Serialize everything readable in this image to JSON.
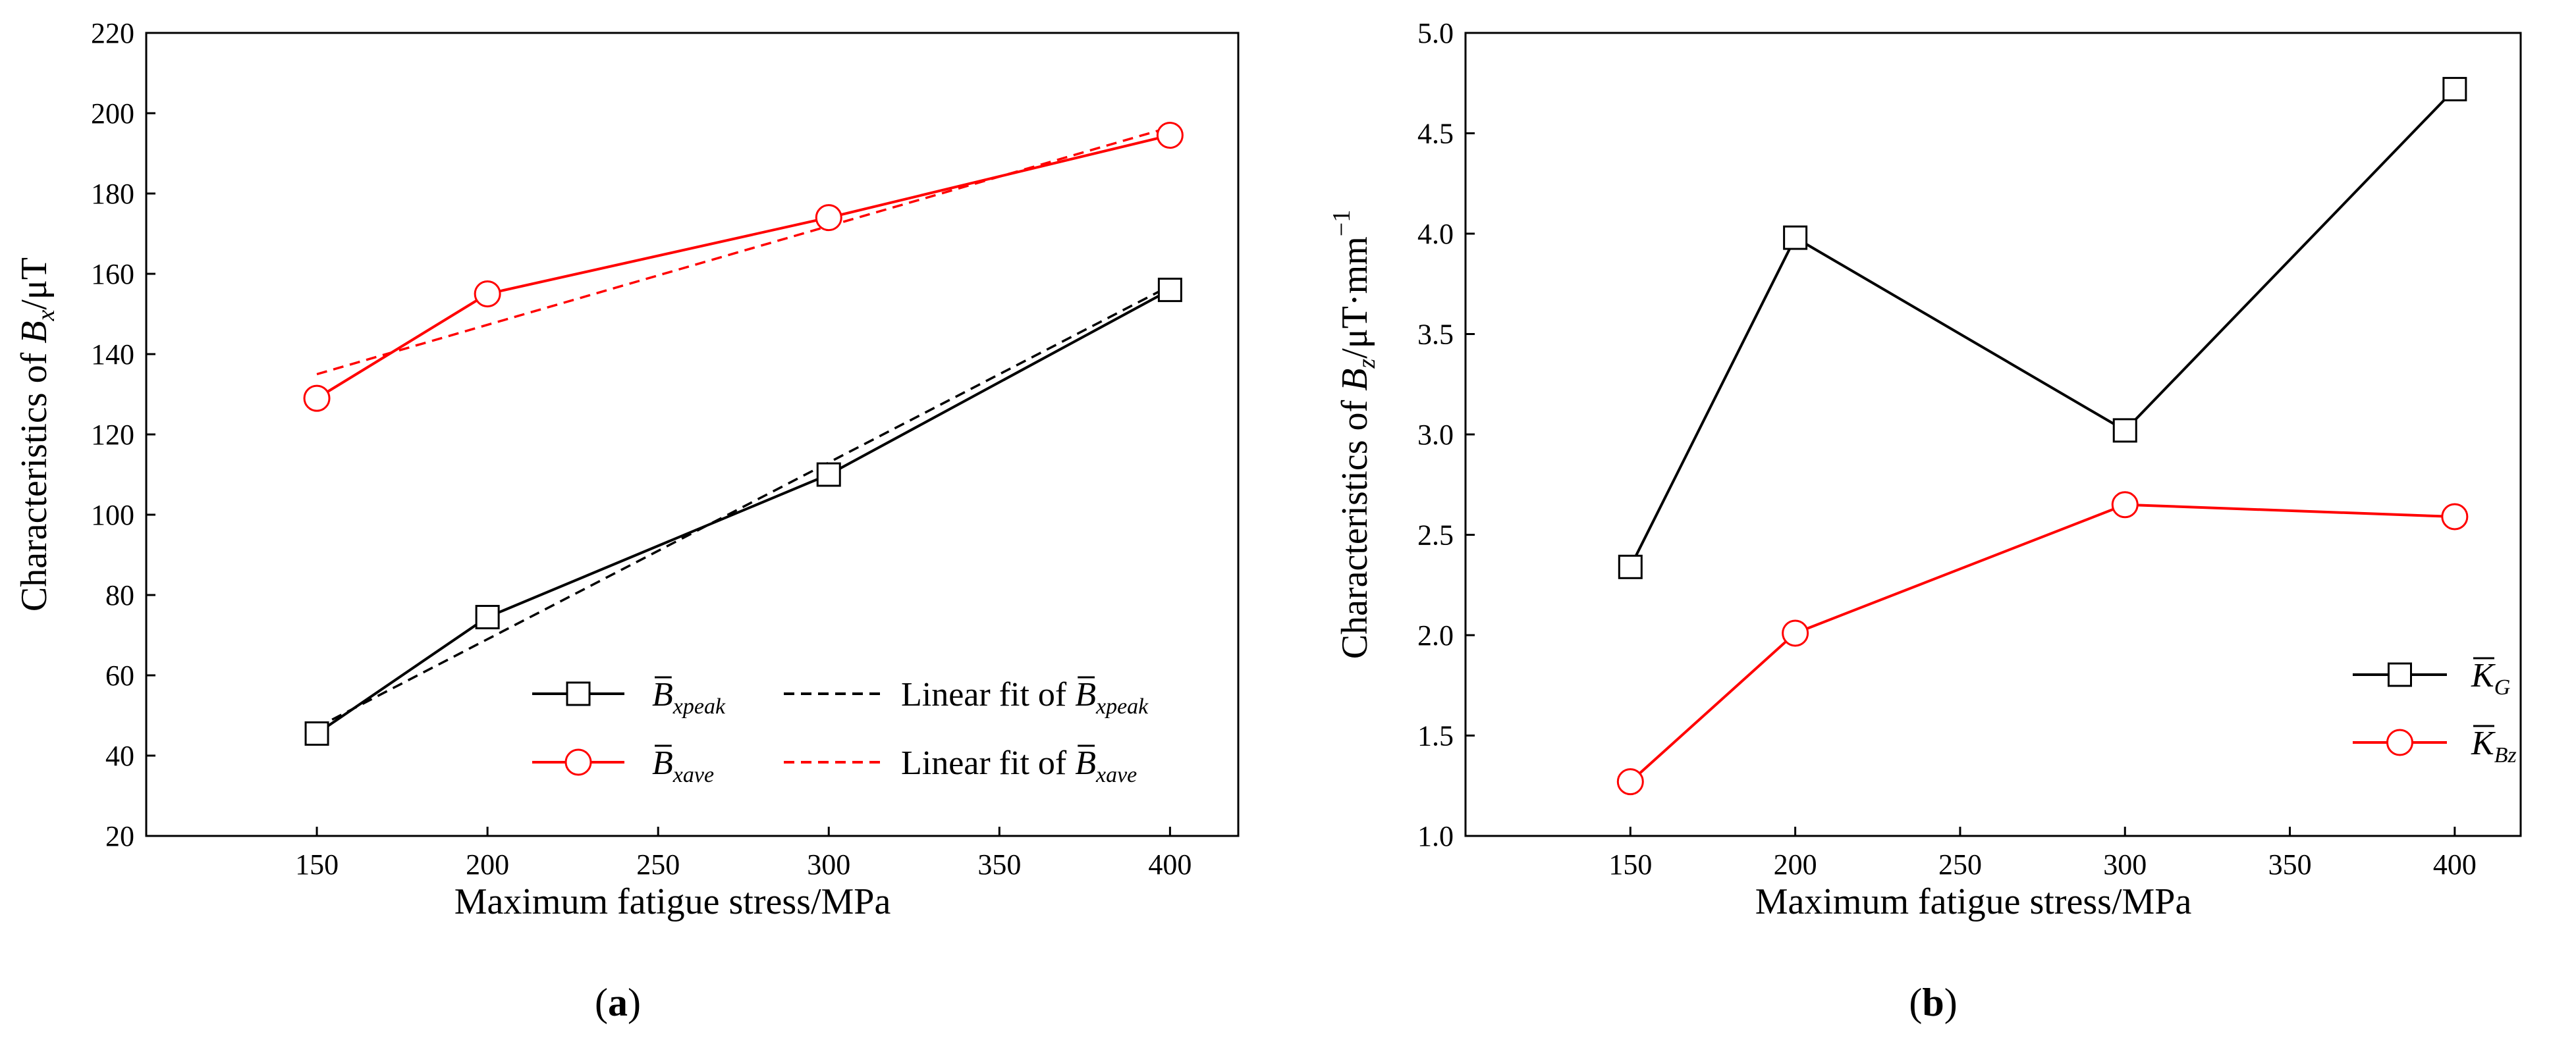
{
  "chart_data": [
    {
      "type": "line",
      "panel": "a",
      "caption": {
        "open": "(",
        "letter": "a",
        "close": ")"
      },
      "xlabel": "Maximum fatigue stress/MPa",
      "ylabel": {
        "prefix": "Characteristics of ",
        "var": "B",
        "sub": "x",
        "unit": "/μT"
      },
      "xlim": [
        100,
        420
      ],
      "ylim": [
        20,
        220
      ],
      "xticks": [
        150,
        200,
        250,
        300,
        350,
        400
      ],
      "yticks": [
        20,
        40,
        60,
        80,
        100,
        120,
        140,
        160,
        180,
        200,
        220
      ],
      "x": [
        150,
        200,
        300,
        400
      ],
      "series": [
        {
          "id": "bxpeak",
          "name": "B̄xpeak",
          "label_var": "B",
          "label_sub": "xpeak",
          "marker": "square",
          "color": "#000000",
          "values": [
            45.5,
            74.5,
            110,
            156
          ]
        },
        {
          "id": "bxave",
          "name": "B̄xave",
          "label_var": "B",
          "label_sub": "xave",
          "marker": "circle",
          "color": "#ff0000",
          "values": [
            129,
            155,
            174,
            194.5
          ]
        }
      ],
      "fits": [
        {
          "id": "fit-bxpeak",
          "name": "Linear fit of B̄xpeak",
          "label_prefix": "Linear fit of ",
          "label_var": "B",
          "label_sub": "xpeak",
          "style": "dashed",
          "color": "#000000",
          "endpoints": [
            [
              150,
              47
            ],
            [
              400,
              157
            ]
          ]
        },
        {
          "id": "fit-bxave",
          "name": "Linear fit of B̄xave",
          "label_prefix": "Linear fit of ",
          "label_var": "B",
          "label_sub": "xave",
          "style": "dashed",
          "color": "#ff0000",
          "endpoints": [
            [
              150,
              135
            ],
            [
              400,
              196.5
            ]
          ]
        }
      ],
      "grid": false,
      "legend_position": "bottom-right"
    },
    {
      "type": "line",
      "panel": "b",
      "caption": {
        "open": "(",
        "letter": "b",
        "close": ")"
      },
      "xlabel": "Maximum fatigue stress/MPa",
      "ylabel": {
        "prefix": "Characteristics of ",
        "var": "B",
        "sub": "z",
        "unit": "/μT·mm",
        "sup": "−1"
      },
      "xlim": [
        100,
        420
      ],
      "ylim": [
        1.0,
        5.0
      ],
      "xticks": [
        150,
        200,
        250,
        300,
        350,
        400
      ],
      "yticks": [
        1.0,
        1.5,
        2.0,
        2.5,
        3.0,
        3.5,
        4.0,
        4.5,
        5.0
      ],
      "x": [
        150,
        200,
        300,
        400
      ],
      "series": [
        {
          "id": "kg",
          "name": "K̄G",
          "label_var": "K",
          "label_sub": "G",
          "marker": "square",
          "color": "#000000",
          "values": [
            2.34,
            3.98,
            3.02,
            4.72
          ]
        },
        {
          "id": "kbz",
          "name": "K̄Bz",
          "label_var": "K",
          "label_sub": "Bz",
          "marker": "circle",
          "color": "#ff0000",
          "values": [
            1.27,
            2.01,
            2.65,
            2.59
          ]
        }
      ],
      "grid": false,
      "legend_position": "bottom-right"
    }
  ]
}
